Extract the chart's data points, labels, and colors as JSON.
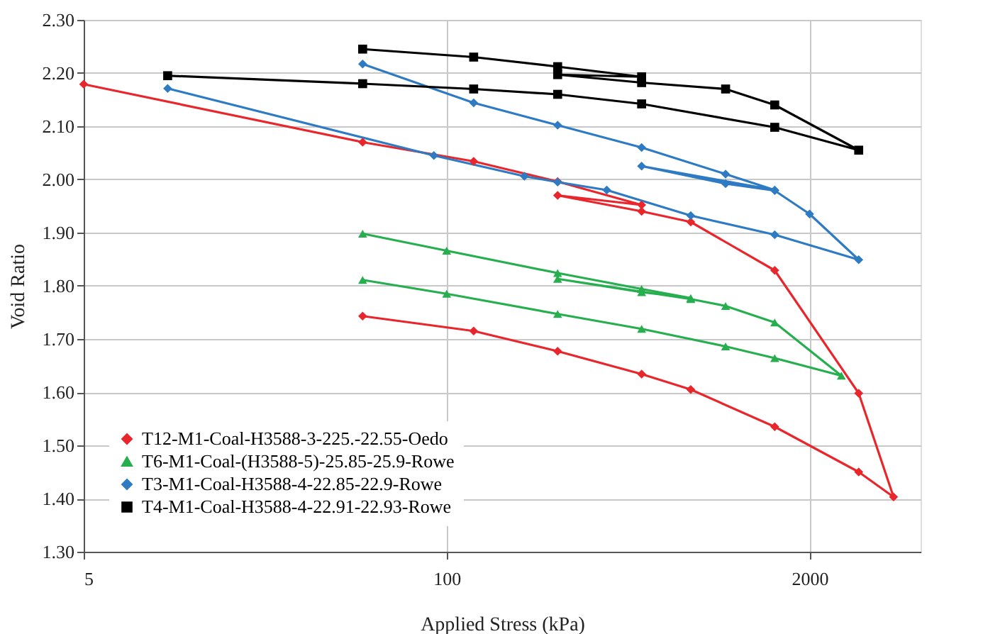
{
  "chart_data": {
    "type": "line",
    "xlabel": "Applied Stress (kPa)",
    "ylabel": "Void Ratio",
    "log": "x",
    "xlim": [
      5,
      5000
    ],
    "xticks": [
      5,
      100,
      2000
    ],
    "ylim": [
      1.3,
      2.3
    ],
    "yticks": [
      {
        "value": 1.3,
        "label": "1.30"
      },
      {
        "value": 1.4,
        "label": "1.40"
      },
      {
        "value": 1.5,
        "label": "1.50"
      },
      {
        "value": 1.6,
        "label": "1.60"
      },
      {
        "value": 1.7,
        "label": "1.70"
      },
      {
        "value": 1.8,
        "label": "1.80"
      },
      {
        "value": 1.9,
        "label": "1.90"
      },
      {
        "value": 2.0,
        "label": "2.00"
      },
      {
        "value": 2.1,
        "label": "2.10"
      },
      {
        "value": 2.2,
        "label": "2.20"
      },
      {
        "value": 2.3,
        "label": "2.30"
      }
    ],
    "grid": true,
    "legend": "bottom left",
    "line_style": "solid",
    "series": [
      {
        "name": "T12-M1-Coal-H3588-3-225.-22.55-Oedo",
        "color": "#e8262b",
        "marker": "diamond",
        "x": [
          5,
          50,
          125,
          250,
          500,
          250,
          500,
          750,
          1500,
          3000,
          4000,
          3000,
          1500,
          750,
          500,
          250,
          125,
          50
        ],
        "values": [
          2.179,
          2.07,
          2.034,
          1.996,
          1.952,
          1.97,
          1.94,
          1.92,
          1.829,
          1.598,
          1.403,
          1.45,
          1.535,
          1.605,
          1.634,
          1.677,
          1.715,
          1.743
        ]
      },
      {
        "name": "T6-M1-Coal-(H3588-5)-25.85-25.9-Rowe",
        "color": "#27ae4f",
        "marker": "triangle",
        "x": [
          50,
          100,
          250,
          500,
          750,
          500,
          250,
          750,
          1000,
          1500,
          2600,
          1500,
          1000,
          500,
          250,
          100,
          50
        ],
        "values": [
          1.898,
          1.866,
          1.824,
          1.794,
          1.777,
          1.788,
          1.813,
          1.775,
          1.762,
          1.731,
          1.631,
          1.664,
          1.686,
          1.719,
          1.747,
          1.785,
          1.811
        ]
      },
      {
        "name": "T3-M1-Coal-H3588-4-22.85-22.9-Rowe",
        "color": "#2e7bc4",
        "marker": "diamond",
        "x": [
          10,
          90,
          190,
          250,
          375,
          750,
          1500,
          3000,
          2000,
          1500,
          1000,
          500,
          1500,
          1000,
          500,
          250,
          125,
          50
        ],
        "values": [
          2.171,
          2.045,
          2.006,
          1.995,
          1.98,
          1.932,
          1.896,
          1.849,
          1.935,
          1.979,
          1.992,
          2.025,
          1.98,
          2.01,
          2.06,
          2.102,
          2.144,
          2.217
        ]
      },
      {
        "name": "T4-M1-Coal-H3588-4-22.91-22.93-Rowe",
        "color": "#000000",
        "marker": "square",
        "x": [
          10,
          50,
          125,
          250,
          500,
          1500,
          3000,
          1500,
          1000,
          500,
          250,
          500,
          250,
          125,
          50
        ],
        "values": [
          2.195,
          2.18,
          2.17,
          2.16,
          2.142,
          2.098,
          2.055,
          2.14,
          2.17,
          2.182,
          2.197,
          2.193,
          2.212,
          2.23,
          2.245
        ]
      }
    ]
  }
}
